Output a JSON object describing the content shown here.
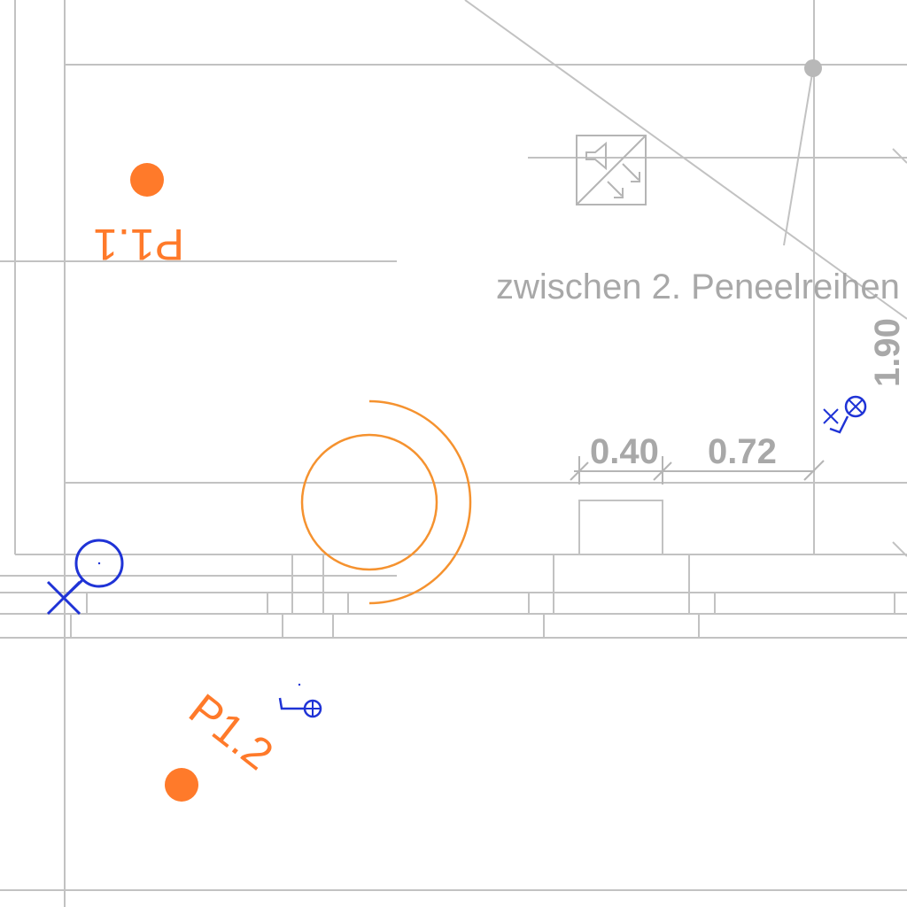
{
  "drawing": {
    "colors": {
      "background": "#ffffff",
      "linework": "#c2c2c2",
      "text": "#a8a8a8",
      "points": "#ff7a2a",
      "symbols": "#1f33d6"
    },
    "points": [
      {
        "label": "P1.1"
      },
      {
        "label": "P1.2"
      }
    ],
    "dimensions": [
      {
        "value": "0.40"
      },
      {
        "value": "0.72"
      },
      {
        "value": "1.90"
      }
    ],
    "note": "zwischen 2. Peneelreihen",
    "symbols": {
      "speaker_box": "speaker-icon",
      "blue_marker": "ceiling-light-icon",
      "orange_ring": "sensor-range-icon"
    }
  }
}
